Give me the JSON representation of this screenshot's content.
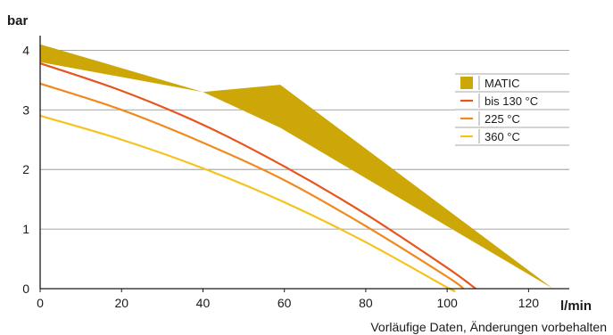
{
  "chart_data": {
    "type": "line",
    "xlabel": "l/min",
    "ylabel": "bar",
    "xlim": [
      0,
      130
    ],
    "ylim": [
      0,
      4.2
    ],
    "xticks": [
      "0",
      "20",
      "40",
      "60",
      "80",
      "100",
      "120"
    ],
    "yticks": [
      "0",
      "1",
      "2",
      "3",
      "4"
    ],
    "grid": "horizontal",
    "legend_position": "right",
    "footnote": "Vorläufige Daten, Änderungen vorbehalten",
    "band": {
      "name": "MATIC",
      "color": "#cda707",
      "upper": [
        [
          0,
          4.1
        ],
        [
          40,
          3.3
        ],
        [
          59,
          3.42
        ],
        [
          126,
          0
        ]
      ],
      "lower": [
        [
          0,
          3.8
        ],
        [
          40,
          3.3
        ],
        [
          59,
          2.7
        ],
        [
          126,
          0
        ]
      ]
    },
    "series": [
      {
        "name": "bis 130 °C",
        "color": "#e8541e",
        "points": [
          [
            0,
            3.78
          ],
          [
            20,
            3.32
          ],
          [
            40,
            2.75
          ],
          [
            60,
            2.05
          ],
          [
            80,
            1.25
          ],
          [
            100,
            0.35
          ],
          [
            107,
            0
          ]
        ]
      },
      {
        "name": "225 °C",
        "color": "#f08a1e",
        "points": [
          [
            0,
            3.44
          ],
          [
            20,
            3.0
          ],
          [
            40,
            2.45
          ],
          [
            60,
            1.82
          ],
          [
            80,
            1.05
          ],
          [
            100,
            0.2
          ],
          [
            104,
            0
          ]
        ]
      },
      {
        "name": "360 °C",
        "color": "#f6c21c",
        "points": [
          [
            0,
            2.9
          ],
          [
            20,
            2.5
          ],
          [
            40,
            2.02
          ],
          [
            60,
            1.45
          ],
          [
            80,
            0.78
          ],
          [
            100,
            0.02
          ],
          [
            101,
            0
          ]
        ]
      }
    ]
  }
}
